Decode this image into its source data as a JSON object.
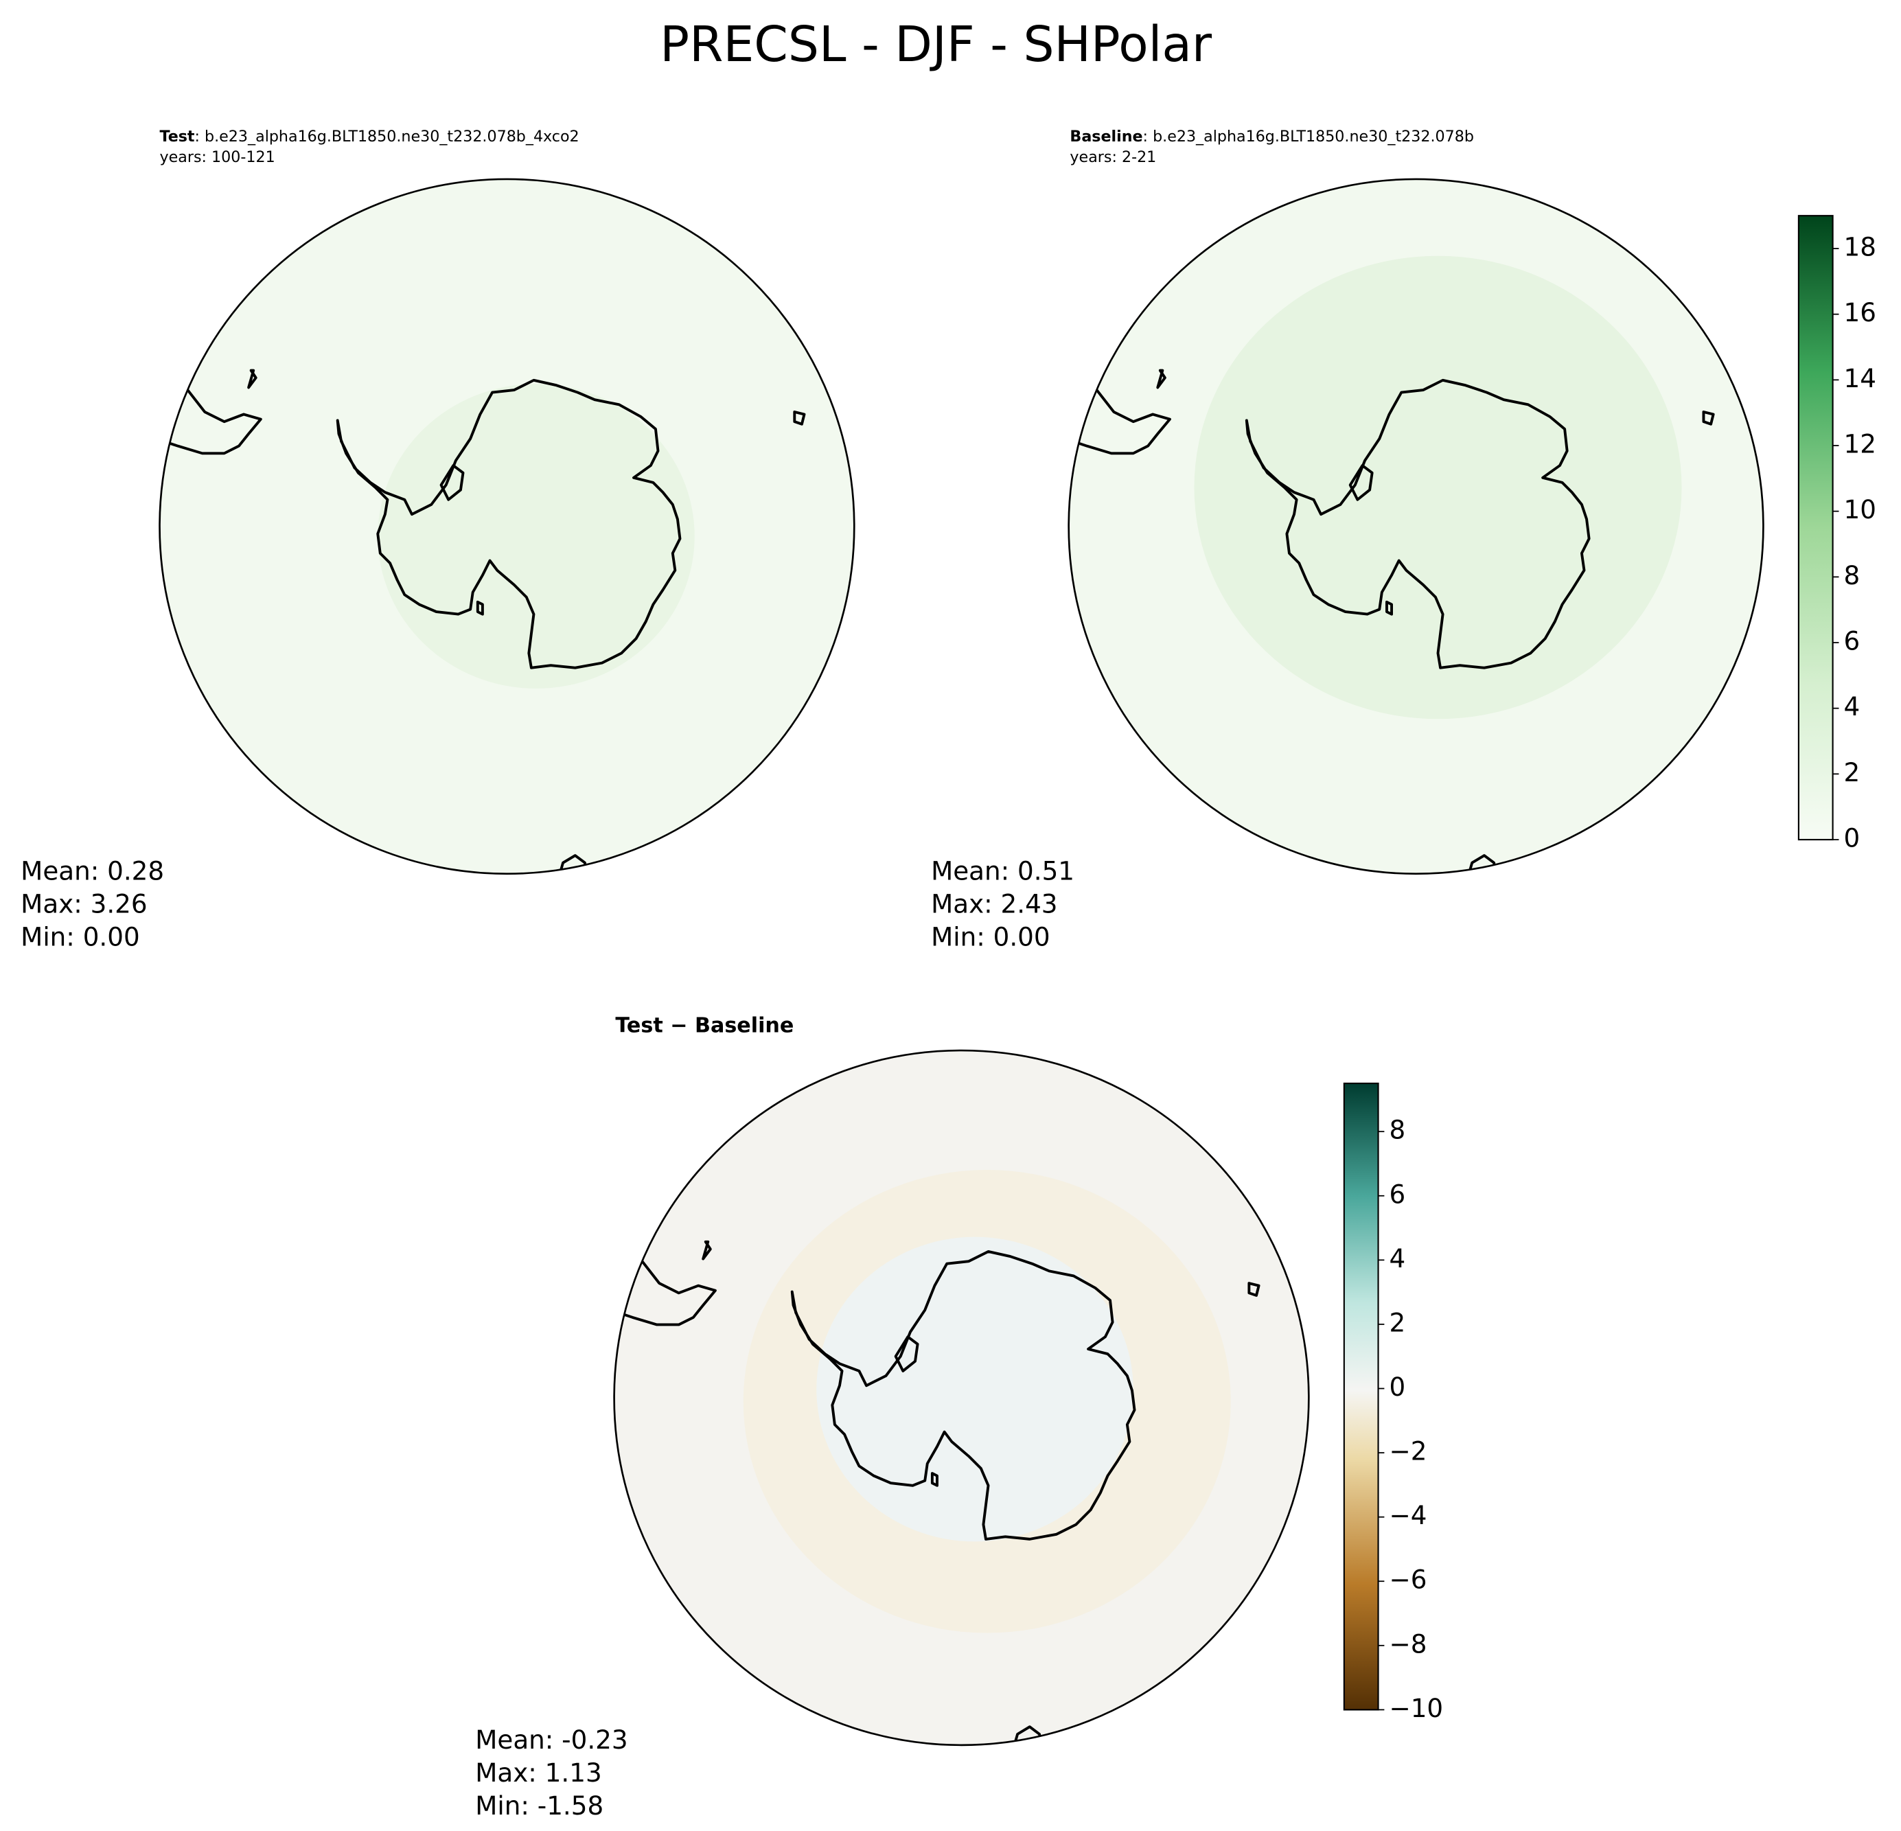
{
  "title": "PRECSL - DJF - SHPolar",
  "panels": [
    {
      "label": "Test",
      "case": ": b.e23_alpha16g.BLT1850.ne30_t232.078b_4xco2",
      "years": "years: 100-121",
      "stats": [
        "Mean:  0.28",
        "Max:  3.26",
        "Min:  0.00"
      ]
    },
    {
      "label": "Baseline",
      "case": ": b.e23_alpha16g.BLT1850.ne30_t232.078b",
      "years": "years: 2-21",
      "stats": [
        "Mean:  0.51",
        "Max:  2.43",
        "Min:  0.00"
      ]
    },
    {
      "label": "Test − Baseline",
      "stats": [
        "Mean: -0.23",
        "Max:  1.13",
        "Min: -1.58"
      ]
    }
  ],
  "colorbars": [
    {
      "ylim": [
        0,
        19
      ],
      "yticks": [
        0,
        2,
        4,
        6,
        8,
        10,
        12,
        14,
        16,
        18
      ]
    },
    {
      "ylim": [
        -10,
        9.5
      ],
      "yticks": [
        {
          "value": -10,
          "label": "−10"
        },
        {
          "value": -8,
          "label": "−8"
        },
        {
          "value": -6,
          "label": "−6"
        },
        {
          "value": -4,
          "label": "−4"
        },
        {
          "value": -2,
          "label": "−2"
        },
        0,
        2,
        4,
        6,
        8
      ]
    }
  ]
}
